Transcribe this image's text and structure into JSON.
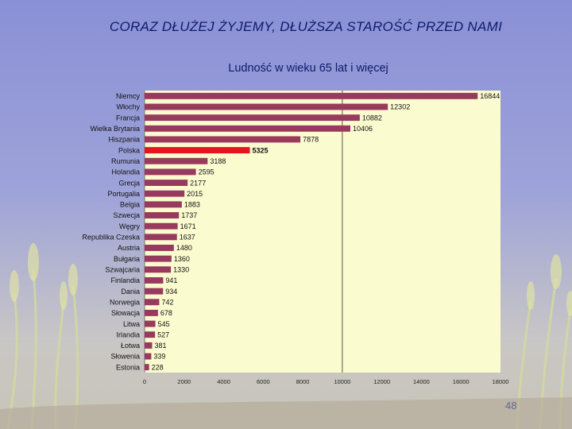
{
  "slide": {
    "title": "CORAZ DŁUŻEJ ŻYJEMY, DŁUŻSZA STAROŚĆ PRZED NAMI",
    "number": "48"
  },
  "colors": {
    "bar": "#973a5e",
    "highlight_bar": "#e5141e",
    "plot_background": "#fbfbd0",
    "title_text": "#0c1c6c"
  },
  "chart_data": {
    "type": "bar",
    "orientation": "horizontal",
    "title": "Ludność w wieku 65 lat i więcej",
    "xlabel": "",
    "ylabel": "",
    "xlim": [
      0,
      18000
    ],
    "xticks": [
      0,
      2000,
      4000,
      6000,
      8000,
      10000,
      12000,
      14000,
      16000,
      18000
    ],
    "reference_line": 10000,
    "grid": false,
    "legend": "none",
    "highlight": "Polska",
    "categories": [
      "Niemcy",
      "Włochy",
      "Francja",
      "Wielka Brytania",
      "Hiszpania",
      "Polska",
      "Rumunia",
      "Holandia",
      "Grecja",
      "Portugalia",
      "Belgia",
      "Szwecja",
      "Węgry",
      "Republika Czeska",
      "Austria",
      "Bułgaria",
      "Szwajcaria",
      "Finlandia",
      "Dania",
      "Norwegia",
      "Słowacja",
      "Litwa",
      "Irlandia",
      "Łotwa",
      "Słowenia",
      "Estonia"
    ],
    "values": [
      16844,
      12302,
      10882,
      10406,
      7878,
      5325,
      3188,
      2595,
      2177,
      2015,
      1883,
      1737,
      1671,
      1637,
      1480,
      1360,
      1330,
      941,
      934,
      742,
      678,
      545,
      527,
      381,
      339,
      228
    ],
    "value_labels": [
      "16844",
      "12302",
      "10882",
      "10406",
      "7878",
      "5325",
      "3188",
      "2595",
      "2177",
      "2015",
      "1883",
      "1737",
      "1671",
      "1637",
      "1480",
      "1360",
      "1330",
      "941",
      "934",
      "742",
      "678",
      "545",
      "527",
      "381",
      "339",
      "228"
    ]
  }
}
